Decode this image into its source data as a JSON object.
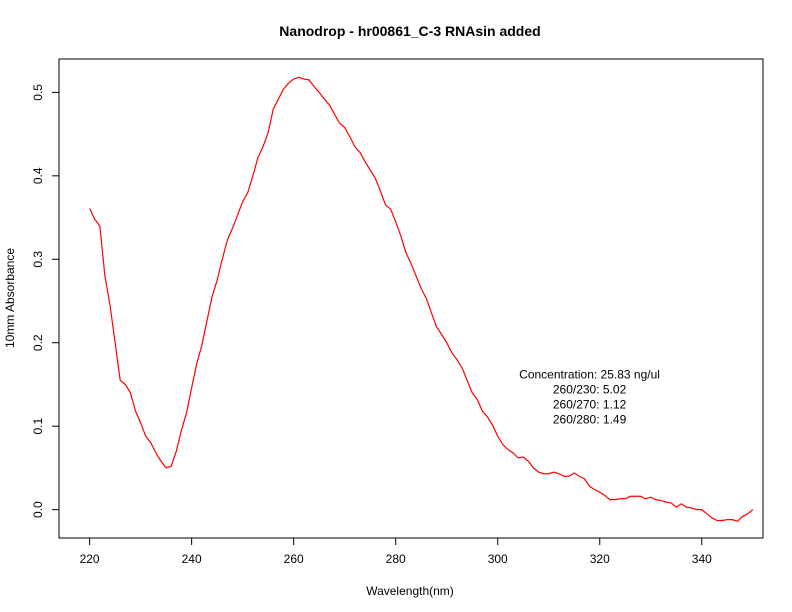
{
  "chart_data": {
    "type": "line",
    "title": "Nanodrop - hr00861_C-3 RNAsin added",
    "xlabel": "Wavelength(nm)",
    "ylabel": "10mm Absorbance",
    "xlim": [
      214,
      352
    ],
    "ylim": [
      -0.034,
      0.54
    ],
    "x_ticks": [
      220,
      240,
      260,
      280,
      300,
      320,
      340
    ],
    "y_ticks": [
      0.0,
      0.1,
      0.2,
      0.3,
      0.4,
      0.5
    ],
    "x_tick_labels": [
      "220",
      "240",
      "260",
      "280",
      "300",
      "320",
      "340"
    ],
    "y_tick_labels": [
      "0.0",
      "0.1",
      "0.2",
      "0.3",
      "0.4",
      "0.5"
    ],
    "grid": false,
    "series": [
      {
        "color": "#ff0000",
        "x": [
          220,
          221,
          222,
          223,
          224,
          225,
          226,
          227,
          228,
          229,
          230,
          231,
          232,
          233,
          234,
          235,
          236,
          237,
          238,
          239,
          240,
          241,
          242,
          243,
          244,
          245,
          246,
          247,
          248,
          249,
          250,
          251,
          252,
          253,
          254,
          255,
          256,
          257,
          258,
          259,
          260,
          261,
          262,
          263,
          264,
          265,
          266,
          267,
          268,
          269,
          270,
          271,
          272,
          273,
          274,
          275,
          276,
          277,
          278,
          279,
          280,
          281,
          282,
          283,
          284,
          285,
          286,
          287,
          288,
          289,
          290,
          291,
          292,
          293,
          294,
          295,
          296,
          297,
          298,
          299,
          300,
          301,
          302,
          303,
          304,
          305,
          306,
          307,
          308,
          309,
          310,
          311,
          312,
          313,
          314,
          315,
          316,
          317,
          318,
          319,
          320,
          321,
          322,
          323,
          324,
          325,
          326,
          327,
          328,
          329,
          330,
          331,
          332,
          333,
          334,
          335,
          336,
          337,
          338,
          339,
          340,
          341,
          342,
          343,
          344,
          345,
          346,
          347,
          348,
          349,
          350
        ],
        "values": [
          0.361,
          0.348,
          0.34,
          0.28,
          0.245,
          0.2,
          0.155,
          0.15,
          0.14,
          0.118,
          0.104,
          0.088,
          0.08,
          0.068,
          0.058,
          0.05,
          0.052,
          0.07,
          0.095,
          0.116,
          0.146,
          0.175,
          0.197,
          0.226,
          0.255,
          0.275,
          0.3,
          0.323,
          0.337,
          0.353,
          0.369,
          0.38,
          0.4,
          0.422,
          0.435,
          0.452,
          0.48,
          0.492,
          0.504,
          0.511,
          0.516,
          0.518,
          0.516,
          0.515,
          0.507,
          0.5,
          0.492,
          0.485,
          0.474,
          0.463,
          0.458,
          0.447,
          0.435,
          0.428,
          0.417,
          0.407,
          0.397,
          0.382,
          0.365,
          0.36,
          0.345,
          0.328,
          0.308,
          0.295,
          0.28,
          0.265,
          0.253,
          0.236,
          0.219,
          0.21,
          0.2,
          0.188,
          0.18,
          0.17,
          0.155,
          0.14,
          0.132,
          0.118,
          0.111,
          0.101,
          0.088,
          0.078,
          0.072,
          0.068,
          0.062,
          0.063,
          0.058,
          0.05,
          0.045,
          0.043,
          0.043,
          0.045,
          0.043,
          0.04,
          0.04,
          0.044,
          0.04,
          0.037,
          0.028,
          0.024,
          0.021,
          0.017,
          0.012,
          0.012,
          0.013,
          0.013,
          0.016,
          0.016,
          0.016,
          0.013,
          0.015,
          0.012,
          0.011,
          0.009,
          0.008,
          0.003,
          0.007,
          0.003,
          0.002,
          0.0,
          0.0,
          -0.005,
          -0.01,
          -0.013,
          -0.013,
          -0.012,
          -0.012,
          -0.014,
          -0.008,
          -0.005,
          0.0
        ]
      }
    ],
    "annotations": [
      {
        "text": "Concentration: 25.83 ng/ul",
        "x": 318,
        "y": 0.157
      },
      {
        "text": "260/230: 5.02",
        "x": 318,
        "y": 0.139
      },
      {
        "text": "260/270: 1.12",
        "x": 318,
        "y": 0.121
      },
      {
        "text": "260/280: 1.49",
        "x": 318,
        "y": 0.103
      }
    ]
  }
}
